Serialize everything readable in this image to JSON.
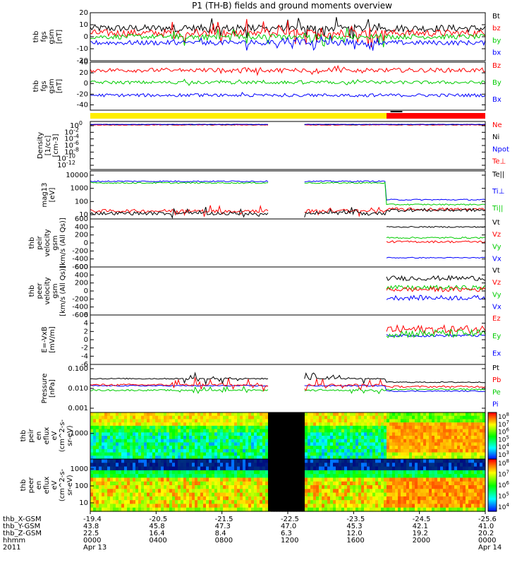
{
  "chart_data": {
    "type": "line",
    "title": "P1 (TH-B) fields and ground moments overview",
    "panels": [
      {
        "id": "fgs",
        "ylabel": [
          "thb",
          "fgs",
          "gsm",
          "[nT]"
        ],
        "yticks": [
          -20,
          -10,
          0,
          10,
          20
        ],
        "ylim": [
          -20,
          20
        ],
        "scale": "linear",
        "legend": [
          {
            "label": "Bt",
            "color": "#000000"
          },
          {
            "label": "bz",
            "color": "#ff0000"
          },
          {
            "label": "by",
            "color": "#00cc00"
          },
          {
            "label": "bx",
            "color": "#0000ff"
          }
        ],
        "series": [
          {
            "name": "Bt",
            "color": "#000000",
            "level": 7,
            "noise": 3,
            "burst": 10
          },
          {
            "name": "bz",
            "color": "#ff0000",
            "level": 3,
            "noise": 3,
            "burst": 10
          },
          {
            "name": "by",
            "color": "#00cc00",
            "level": 0,
            "noise": 2,
            "burst": 8
          },
          {
            "name": "bx",
            "color": "#0000ff",
            "level": -5,
            "noise": 2,
            "burst": 6
          }
        ]
      },
      {
        "id": "fgs2",
        "ylabel": [
          "thb",
          "fgs",
          "gsm",
          "[nT]"
        ],
        "yticks": [
          -40,
          -20,
          0,
          20,
          40
        ],
        "ylim": [
          -50,
          40
        ],
        "scale": "linear",
        "legend": [
          {
            "label": "Bz",
            "color": "#ff0000"
          },
          {
            "label": "By",
            "color": "#00cc00"
          },
          {
            "label": "Bx",
            "color": "#0000ff"
          }
        ],
        "series": [
          {
            "name": "Bz",
            "color": "#ff0000",
            "level": 25,
            "noise": 4,
            "burst": 6
          },
          {
            "name": "By",
            "color": "#00cc00",
            "level": 2,
            "noise": 3,
            "burst": 4
          },
          {
            "name": "Bx",
            "color": "#0000ff",
            "level": -22,
            "noise": 3,
            "burst": 3
          }
        ]
      },
      {
        "id": "density",
        "ylabel": [
          "Density",
          "[1/cc]",
          "[cm-3]"
        ],
        "yticks": [
          "10^0",
          "10^-2",
          "10^-4",
          "10^-6",
          "10^-8",
          "10^-10",
          "10^-12"
        ],
        "ylim": [
          -13,
          1
        ],
        "scale": "log",
        "legend": [
          {
            "label": "Ne",
            "color": "#ff0000"
          },
          {
            "label": "Ni",
            "color": "#000000"
          },
          {
            "label": "Npot",
            "color": "#0000ff"
          },
          {
            "label": "Te⊥",
            "color": "#ff0000"
          }
        ],
        "series": [
          {
            "name": "Ne",
            "color": "#ff0000",
            "level": 0,
            "noise": 0.1,
            "burst": 0
          },
          {
            "name": "Ni",
            "color": "#000000",
            "level": 0.1,
            "noise": 0.1,
            "burst": 0
          },
          {
            "name": "Npot",
            "color": "#0000ff",
            "level": 0.15,
            "noise": 0.05,
            "burst": 0
          }
        ]
      },
      {
        "id": "temp",
        "ylabel": [
          "mag13",
          "[eV]"
        ],
        "yticks": [
          "10000",
          "1000",
          "100",
          "10"
        ],
        "ylim": [
          1,
          4
        ],
        "scale": "log",
        "legend": [
          {
            "label": "Te||",
            "color": "#000000"
          },
          {
            "label": "Ti⊥",
            "color": "#0000ff"
          },
          {
            "label": "Ti||",
            "color": "#00cc00"
          }
        ],
        "series": [
          {
            "name": "Ti⊥",
            "color": "#0000ff",
            "level": 3.35,
            "noise": 0.04,
            "burst": 0,
            "after": 2.2
          },
          {
            "name": "Ti||",
            "color": "#00cc00",
            "level": 3.25,
            "noise": 0.04,
            "burst": 0,
            "after": 1.9
          },
          {
            "name": "Te⊥",
            "color": "#ff0000",
            "level": 1.5,
            "noise": 0.1,
            "burst": 0.3,
            "after": 1.6
          },
          {
            "name": "Te||",
            "color": "#000000",
            "level": 1.35,
            "noise": 0.1,
            "burst": 0.3,
            "after": 1.55
          }
        ]
      },
      {
        "id": "peir",
        "ylabel": [
          "thb",
          "peir",
          "velocity",
          "gsm",
          "[km/s (All Qs)]"
        ],
        "yticks": [
          600,
          400,
          200,
          0,
          -200,
          -400,
          -600
        ],
        "ylim": [
          -600,
          600
        ],
        "scale": "linear",
        "legend": [
          {
            "label": "Vt",
            "color": "#000000"
          },
          {
            "label": "Vz",
            "color": "#ff0000"
          },
          {
            "label": "Vy",
            "color": "#00cc00"
          },
          {
            "label": "Vx",
            "color": "#0000ff"
          }
        ],
        "series": [
          {
            "name": "Vt",
            "color": "#000000",
            "level": 400,
            "noise": 15,
            "burst": 0,
            "late": true
          },
          {
            "name": "Vy",
            "color": "#00cc00",
            "level": 130,
            "noise": 20,
            "burst": 0,
            "late": true
          },
          {
            "name": "Vz",
            "color": "#ff0000",
            "level": 30,
            "noise": 25,
            "burst": 0,
            "late": true
          },
          {
            "name": "Vx",
            "color": "#0000ff",
            "level": -370,
            "noise": 12,
            "burst": 0,
            "late": true
          }
        ]
      },
      {
        "id": "peer",
        "ylabel": [
          "thb",
          "peer",
          "velocity",
          "gsm",
          "[km/s (All Qs)]"
        ],
        "yticks": [
          600,
          400,
          200,
          0,
          -200,
          -400,
          -600
        ],
        "ylim": [
          -600,
          600
        ],
        "scale": "linear",
        "legend": [
          {
            "label": "Vt",
            "color": "#000000"
          },
          {
            "label": "Vz",
            "color": "#ff0000"
          },
          {
            "label": "Vy",
            "color": "#00cc00"
          },
          {
            "label": "Vx",
            "color": "#0000ff"
          }
        ],
        "series": [
          {
            "name": "Vt",
            "color": "#000000",
            "level": 320,
            "noise": 60,
            "burst": 0,
            "late": true
          },
          {
            "name": "Vy",
            "color": "#00cc00",
            "level": 80,
            "noise": 60,
            "burst": 0,
            "late": true
          },
          {
            "name": "Vz",
            "color": "#ff0000",
            "level": 40,
            "noise": 60,
            "burst": 0,
            "late": true
          },
          {
            "name": "Vx",
            "color": "#0000ff",
            "level": -170,
            "noise": 60,
            "burst": 0,
            "late": true
          }
        ]
      },
      {
        "id": "efield",
        "ylabel": [
          "E=-VxB",
          "[mV/m]"
        ],
        "yticks": [
          6,
          4,
          2,
          0,
          -2,
          -4,
          -6
        ],
        "ylim": [
          -6,
          6
        ],
        "scale": "linear",
        "legend": [
          {
            "label": "Ez",
            "color": "#ff0000"
          },
          {
            "label": "Ey",
            "color": "#00cc00"
          },
          {
            "label": "Ex",
            "color": "#0000ff"
          }
        ],
        "series": [
          {
            "name": "Ex",
            "color": "#0000ff",
            "level": 1.0,
            "noise": 0.3,
            "burst": 0,
            "late": true
          },
          {
            "name": "Ez",
            "color": "#ff0000",
            "level": 2.5,
            "noise": 1.0,
            "burst": 0,
            "late": true
          },
          {
            "name": "Ey",
            "color": "#00cc00",
            "level": 1.5,
            "noise": 1.0,
            "burst": 0,
            "late": true
          }
        ]
      },
      {
        "id": "pressure",
        "ylabel": [
          "Pressure",
          "[nPa]"
        ],
        "yticks": [
          "0.100",
          "0.010",
          "0.001"
        ],
        "ylim": [
          -3,
          -0.3
        ],
        "scale": "log",
        "legend": [
          {
            "label": "Pt",
            "color": "#000000"
          },
          {
            "label": "Pb",
            "color": "#ff0000"
          },
          {
            "label": "Pe",
            "color": "#00cc00"
          },
          {
            "label": "Pi",
            "color": "#0000ff"
          }
        ],
        "series": [
          {
            "name": "Pi",
            "color": "#0000ff",
            "level": -1.5,
            "noise": 0.03,
            "burst": 0,
            "after": -1.8
          },
          {
            "name": "Pe",
            "color": "#00cc00",
            "level": -1.75,
            "noise": 0.04,
            "burst": 0.2,
            "after": -1.7
          },
          {
            "name": "Pb",
            "color": "#ff0000",
            "level": -1.45,
            "noise": 0.05,
            "burst": 0.4,
            "after": -1.55
          },
          {
            "name": "Pt",
            "color": "#000000",
            "level": -1.1,
            "noise": 0.03,
            "burst": 0.35,
            "after": -1.3
          }
        ]
      },
      {
        "id": "peir_spec",
        "type": "heatmap",
        "ylabel": [
          "thb",
          "peir",
          "en",
          "eflux",
          "eV",
          "(cm^2-s-",
          "sr-eV)"
        ],
        "yticks": [
          "1000"
        ],
        "colorbar_ticks": [
          "10^8",
          "10^7",
          "10^6",
          "10^5",
          "10^4",
          "10^3"
        ]
      },
      {
        "id": "peer_spec",
        "type": "heatmap",
        "ylabel": [
          "thb",
          "peer",
          "en",
          "eflux",
          "eV",
          "(cm^2-s-",
          "sr-eV)"
        ],
        "yticks": [
          "1000",
          "100",
          "10"
        ],
        "colorbar_ticks": [
          "10^8",
          "10^7",
          "10^6",
          "10^5",
          "10^4"
        ]
      }
    ],
    "data_gap": [
      0.45,
      0.54
    ],
    "mode_change": 0.75,
    "mode_bar": {
      "before": "#ffee00",
      "after": "#ff0000"
    },
    "x_axis": {
      "rows": [
        {
          "label": "thb_X-GSM",
          "values": [
            "-19.4",
            "-20.5",
            "-21.5",
            "-22.5",
            "-23.5",
            "-24.5",
            "-25.6"
          ]
        },
        {
          "label": "thb_Y-GSM",
          "values": [
            "43.8",
            "45.8",
            "47.3",
            "47.0",
            "45.3",
            "42.1",
            "41.0"
          ]
        },
        {
          "label": "thb_Z-GSM",
          "values": [
            "22.5",
            "16.4",
            "8.4",
            "6.3",
            "12.0",
            "19.2",
            "20.2"
          ]
        },
        {
          "label": "hhmm",
          "values": [
            "0000",
            "0400",
            "0800",
            "1200",
            "1600",
            "2000",
            "0000"
          ]
        },
        {
          "label": "2011",
          "values": [
            "Apr 13",
            "",
            "",
            "",
            "",
            "",
            "Apr 14"
          ]
        }
      ]
    }
  }
}
